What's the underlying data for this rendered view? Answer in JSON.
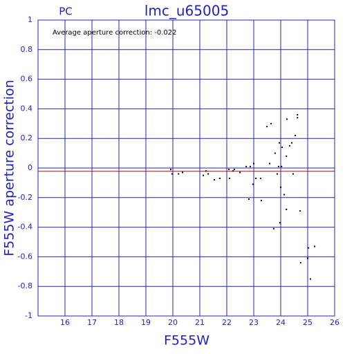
{
  "chart_data": {
    "type": "scatter",
    "title": "lmc_u65005",
    "subtitle": "PC",
    "annotation": "Average aperture correction: -0.022",
    "x_label": "F555W",
    "y_label": "F555W aperture correction",
    "x": [
      19.92,
      19.97,
      20.21,
      20.36,
      21.13,
      21.23,
      21.31,
      21.54,
      21.74,
      22.08,
      22.1,
      22.23,
      22.28,
      22.49,
      22.72,
      22.82,
      22.87,
      22.97,
      23.0,
      23.08,
      23.26,
      23.28,
      23.49,
      23.64,
      23.59,
      23.74,
      23.79,
      23.87,
      23.92,
      23.95,
      23.97,
      24.0,
      24.03,
      24.05,
      24.13,
      24.21,
      24.21,
      24.23,
      24.33,
      24.41,
      24.46,
      24.54,
      24.62,
      24.62,
      24.72,
      24.74,
      25.0,
      25.03,
      25.1,
      25.26
    ],
    "values": [
      -0.01,
      -0.04,
      -0.04,
      -0.03,
      -0.05,
      -0.02,
      -0.04,
      -0.08,
      -0.07,
      -0.01,
      -0.07,
      -0.02,
      -0.01,
      -0.03,
      0.01,
      -0.21,
      0.01,
      -0.11,
      0.03,
      -0.07,
      -0.07,
      -0.22,
      0.28,
      0.3,
      0.03,
      -0.41,
      0.1,
      -0.04,
      0.01,
      0.17,
      -0.37,
      -0.13,
      0.01,
      0.14,
      -0.18,
      -0.28,
      0.08,
      0.33,
      0.15,
      0.17,
      -0.04,
      0.22,
      0.36,
      0.34,
      -0.29,
      -0.64,
      -0.61,
      -0.54,
      -0.75,
      -0.53
    ],
    "color": "#000000",
    "axis_color": "#2222bb",
    "reference_line": {
      "value": -0.022,
      "color": "#cc0000"
    },
    "xlim": [
      15,
      26
    ],
    "xticks": [
      16,
      17,
      18,
      19,
      20,
      21,
      22,
      23,
      24,
      25,
      26
    ],
    "ylim": [
      -1,
      1
    ],
    "yticks": [
      -1,
      -0.8,
      -0.6,
      -0.4,
      -0.2,
      0,
      0.2,
      0.4,
      0.6,
      0.8,
      1
    ],
    "grid": true
  }
}
